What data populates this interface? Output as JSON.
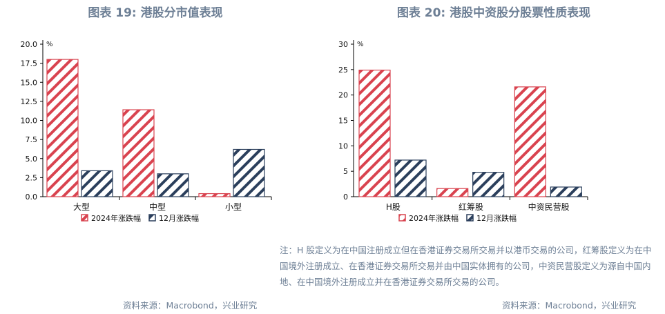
{
  "titles": {
    "chart1": "图表 19: 港股分市值表现",
    "chart2": "图表 20: 港股中资股分股票性质表现"
  },
  "colors": {
    "series1": "#d9434f",
    "series2": "#2b3f5c",
    "axis": "#000000",
    "title": "#6d7f95"
  },
  "chart_data": [
    {
      "type": "bar",
      "title": "图表 19: 港股分市值表现",
      "ylabel": "%",
      "ylim": [
        0,
        20
      ],
      "yticks": [
        "0.0",
        "2.5",
        "5.0",
        "7.5",
        "10.0",
        "12.5",
        "15.0",
        "17.5",
        "20.0"
      ],
      "categories": [
        "大型",
        "中型",
        "小型"
      ],
      "series": [
        {
          "name": "2024年涨跌幅",
          "values": [
            18.0,
            11.4,
            0.4
          ],
          "pattern": "red-hatch"
        },
        {
          "name": "12月涨跌幅",
          "values": [
            3.4,
            3.0,
            6.2
          ],
          "pattern": "navy-hatch"
        }
      ],
      "legend": "bottom",
      "grid": false
    },
    {
      "type": "bar",
      "title": "图表 20: 港股中资股分股票性质表现",
      "ylabel": "%",
      "ylim": [
        0,
        30
      ],
      "yticks": [
        "0",
        "5",
        "10",
        "15",
        "20",
        "25",
        "30"
      ],
      "categories": [
        "H股",
        "红筹股",
        "中资民营股"
      ],
      "series": [
        {
          "name": "2024年涨跌幅",
          "values": [
            24.9,
            1.6,
            21.6
          ],
          "pattern": "red-hatch"
        },
        {
          "name": "12月涨跌幅",
          "values": [
            7.2,
            4.8,
            1.9
          ],
          "pattern": "navy-hatch"
        }
      ],
      "legend": "bottom",
      "grid": false
    }
  ],
  "note": "注：H 股定义为在中国注册成立但在香港证券交易所交易并以港币交易的公司，红筹股定义为在中国境外注册成立、在香港证券交易所交易并由中国实体拥有的公司，中资民营股定义为源自中国内地、在中国境外注册成立并在香港证券交易所交易的公司。",
  "sources": {
    "chart1": "资料来源：Macrobond，兴业研究",
    "chart2": "资料来源：Macrobond，兴业研究"
  }
}
